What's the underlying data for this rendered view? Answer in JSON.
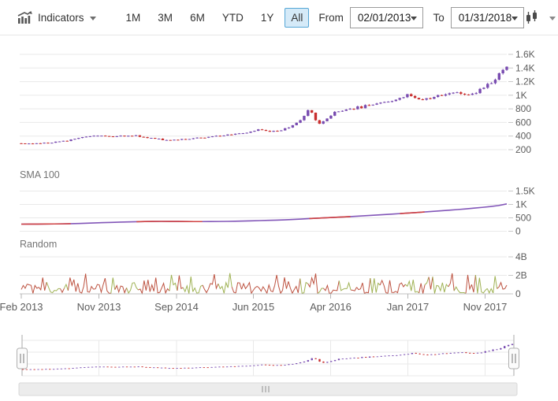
{
  "toolbar": {
    "indicators_label": "Indicators",
    "range_buttons": [
      "1M",
      "3M",
      "6M",
      "YTD",
      "1Y",
      "All"
    ],
    "selected_range": "All",
    "from_label": "From",
    "from_value": "02/01/2013",
    "to_label": "To",
    "to_value": "01/31/2018",
    "selected_bg": "#d5eaf8",
    "selected_border": "#54a6d6"
  },
  "chart_data": {
    "type": "candlestick",
    "x_axis": {
      "tick_labels": [
        "Feb 2013",
        "Nov 2013",
        "Sep 2014",
        "Jun 2015",
        "Apr 2016",
        "Jan 2017",
        "Nov 2017"
      ],
      "range": [
        "Feb 2013",
        "Jan 2018"
      ]
    },
    "price_panel": {
      "type": "candlestick",
      "interval": "monthly trend anchors, Feb 2013 - Jan 2018",
      "y_tick_labels": [
        "200",
        "400",
        "600",
        "800",
        "1K",
        "1.2K",
        "1.4K",
        "1.6K"
      ],
      "y_range": [
        200,
        1600
      ],
      "monthly_closes": [
        290,
        288,
        293,
        300,
        308,
        320,
        342,
        372,
        398,
        412,
        400,
        382,
        396,
        412,
        405,
        385,
        368,
        350,
        338,
        348,
        360,
        372,
        382,
        392,
        402,
        418,
        432,
        452,
        468,
        505,
        470,
        480,
        505,
        560,
        640,
        820,
        560,
        650,
        740,
        770,
        800,
        820,
        845,
        870,
        895,
        920,
        950,
        1000,
        960,
        940,
        975,
        1000,
        1030,
        1070,
        1010,
        1040,
        1090,
        1180,
        1300,
        1450
      ],
      "up_color": "#784bb0",
      "down_color": "#c82f2f",
      "candle_count": 128,
      "noise_seed": 5
    },
    "sma_panel": {
      "type": "line",
      "title": "SMA 100",
      "y_tick_labels": [
        "0",
        "500",
        "1K",
        "1.5K"
      ],
      "y_range": [
        0,
        1500
      ],
      "monthly_values": [
        265,
        266,
        267,
        269,
        272,
        276,
        282,
        290,
        300,
        311,
        321,
        330,
        339,
        348,
        356,
        362,
        366,
        368,
        367,
        365,
        362,
        360,
        360,
        361,
        364,
        368,
        374,
        381,
        389,
        397,
        406,
        415,
        425,
        438,
        454,
        472,
        488,
        502,
        516,
        531,
        547,
        564,
        582,
        600,
        619,
        638,
        658,
        678,
        698,
        719,
        740,
        762,
        785,
        809,
        834,
        861,
        890,
        921,
        960,
        1020
      ],
      "line_color": "#8256b8",
      "bearish_color": "#d04343",
      "bearish_ranges": [
        [
          0.01,
          0.09
        ],
        [
          0.24,
          0.36
        ],
        [
          0.6,
          0.67
        ],
        [
          0.795,
          0.815
        ]
      ]
    },
    "random_panel": {
      "type": "line",
      "title": "Random",
      "y_tick_labels": [
        "0",
        "2B",
        "4B"
      ],
      "y_range_billions": [
        0,
        4
      ],
      "noise": {
        "seed": 11,
        "points": 250,
        "min_b": 0.06,
        "max_b": 2.25,
        "green_chance": 0.25
      },
      "colors": {
        "main": "#bd5240",
        "alt": "#9fb254"
      }
    },
    "navigator": {
      "type": "candlestick",
      "shows": "full price series miniature",
      "handle_glyph": "II",
      "scrollbar_glyph": "III"
    },
    "grid_color": "#e9e9e9",
    "axis_text_color": "#5c5c5c"
  }
}
